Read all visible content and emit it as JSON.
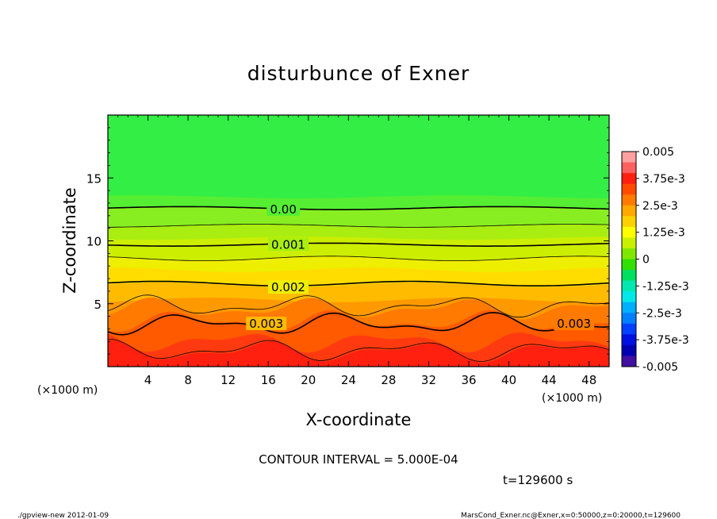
{
  "chart_data": {
    "type": "contour",
    "title": "disturbunce of Exner",
    "xlabel": "X-coordinate",
    "ylabel": "Z-coordinate",
    "x_unit_left": "(×1000 m)",
    "x_unit_right": "(×1000 m)",
    "xlim": [
      0,
      50
    ],
    "ylim": [
      0,
      20
    ],
    "x_ticks": [
      4,
      8,
      12,
      16,
      20,
      24,
      28,
      32,
      36,
      40,
      44,
      48
    ],
    "y_ticks": [
      5,
      10,
      15
    ],
    "contour_interval_text": "CONTOUR INTERVAL = 5.000E-04",
    "time_text": "t=129600 s",
    "contour_labels": [
      {
        "text": "0.00",
        "x": 17.5,
        "z": 12.5
      },
      {
        "text": "0.001",
        "x": 18.0,
        "z": 9.7
      },
      {
        "text": "0.002",
        "x": 18.0,
        "z": 6.3
      },
      {
        "text": "0.003",
        "x": 15.8,
        "z": 3.4
      },
      {
        "text": "0.003",
        "x": 46.5,
        "z": 3.4
      }
    ],
    "colorbar": {
      "labels": [
        "0.005",
        "3.75e-3",
        "2.5e-3",
        "1.25e-3",
        "0",
        "-1.25e-3",
        "-2.5e-3",
        "-3.75e-3",
        "-0.005"
      ],
      "colors_top_to_bottom": [
        "#ffa0a0",
        "#ff6060",
        "#ff2010",
        "#ff4a00",
        "#ff7a00",
        "#ffa800",
        "#ffd000",
        "#ffff00",
        "#c8f000",
        "#80e800",
        "#30e000",
        "#00e060",
        "#00e8b0",
        "#00e8e8",
        "#00b0ff",
        "#0080ff",
        "#0040ff",
        "#0010e0",
        "#0000b0",
        "#4010a0"
      ]
    },
    "field_bands": [
      {
        "z_top": 20,
        "color": "#33ee44"
      },
      {
        "z_top": 16,
        "color": "#33ee44"
      },
      {
        "z_top": 13.5,
        "color": "#55ee33"
      },
      {
        "z_top": 12.6,
        "color": "#88ee22"
      },
      {
        "z_top": 11.2,
        "color": "#aaee11"
      },
      {
        "z_top": 10.2,
        "color": "#ccee00"
      },
      {
        "z_top": 8.6,
        "color": "#eeee00"
      },
      {
        "z_top": 7.7,
        "color": "#ffdd00"
      },
      {
        "z_top": 6.5,
        "color": "#ffbb00"
      },
      {
        "z_top": 5.3,
        "color": "#ff9900"
      },
      {
        "z_top": 4.6,
        "color": "#ff7a00"
      },
      {
        "z_top": 3.6,
        "color": "#ff5a00"
      },
      {
        "z_top": 2.0,
        "color": "#ff3a10"
      },
      {
        "z_top": 1.2,
        "color": "#ff2010"
      }
    ]
  },
  "footer": {
    "left": "./gpview-new   2012-01-09",
    "right": "MarsCond_Exner.nc@Exner,x=0:50000,z=0:20000,t=129600"
  }
}
